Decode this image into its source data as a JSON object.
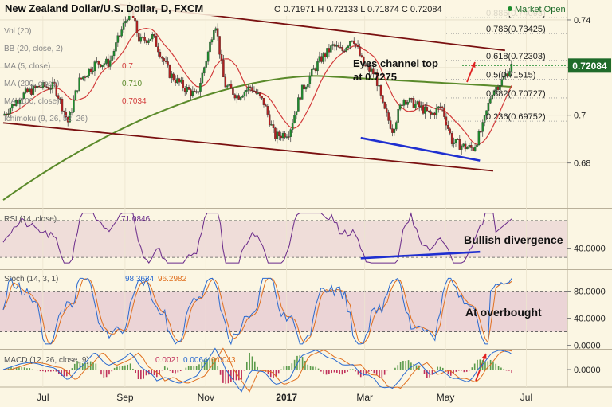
{
  "header": {
    "title": "New Zealand Dollar/U.S. Dollar, D, FXCM",
    "ohlc_text": "O 0.71971  H 0.72133  L 0.71874  C 0.72084",
    "market_status": "Market Open"
  },
  "colors": {
    "background": "#fbf6e3",
    "candle_up": "#1e8c2d",
    "candle_down": "#b02020",
    "ma5": "#d23b3b",
    "ma200": "#5a8a2a",
    "channel": "#7a1010",
    "support": "#1f2fd0",
    "arrow": "#e02020",
    "rsi_line": "#6a2a8a",
    "stoch_k": "#2a6ad0",
    "stoch_d": "#e07020",
    "band_fill": "#e6c8d2",
    "market_dot": "#1e8c2d"
  },
  "chart_data": {
    "type": "candlestick",
    "x_ticks": [
      "Jul",
      "Sep",
      "Nov",
      "2017",
      "Mar",
      "May",
      "Jul"
    ],
    "current_price": 0.72084,
    "price_axis": {
      "ticks": [
        0.68,
        0.7,
        0.72,
        0.74
      ],
      "ylim": [
        0.6615,
        0.747
      ]
    },
    "legends": [
      {
        "label": "Vol (20)",
        "value": ""
      },
      {
        "label": "BB (20, close, 2)",
        "value": ""
      },
      {
        "label": "MA (5, close)",
        "value": "0.7",
        "color": "#d23b3b"
      },
      {
        "label": "MA (200, close)",
        "value": "0.710",
        "color": "#5a8a2a"
      },
      {
        "label": "MA (100, close)",
        "value": "0.7034",
        "color": "#d23b3b"
      },
      {
        "label": "Ichimoku (9, 26, 52, 26)",
        "value": ""
      }
    ],
    "fib_levels": [
      {
        "label": "0.886(0.74093)",
        "price": 0.74093
      },
      {
        "label": "0.786(0.73425)",
        "price": 0.73425
      },
      {
        "label": "0.618(0.72303)",
        "price": 0.72303
      },
      {
        "label": "0.5(0.71515)",
        "price": 0.71515
      },
      {
        "label": "0.382(0.70727)",
        "price": 0.70727
      },
      {
        "label": "0.236(0.69752)",
        "price": 0.69752
      }
    ],
    "annotations": {
      "channel": [
        "Eyes channel top",
        "at 0.7275"
      ],
      "rsi": "Bullish divergence",
      "stoch": "At overbought"
    },
    "channel": {
      "upper": [
        {
          "date": "2016-08-28",
          "price": 0.7465
        },
        {
          "date": "2017-06-15",
          "price": 0.7272
        }
      ],
      "lower": [
        {
          "date": "2016-06-01",
          "price": 0.6968
        },
        {
          "date": "2017-06-06",
          "price": 0.6767
        }
      ]
    },
    "support_line": [
      {
        "date": "2017-02-26",
        "price": 0.6905
      },
      {
        "date": "2017-05-27",
        "price": 0.681
      }
    ],
    "rsi": {
      "label": "RSI (14, close)",
      "value": "71.0846",
      "ticks": [
        40
      ],
      "tick_labels": [
        "40.0000"
      ],
      "band": [
        30,
        70
      ],
      "divergence_line": [
        {
          "date": "2017-02-26",
          "rsi": 29
        },
        {
          "date": "2017-05-27",
          "rsi": 36
        }
      ]
    },
    "stoch": {
      "label": "Stoch (14, 3, 1)",
      "k_value": "98.3634",
      "d_value": "96.2982",
      "ticks": [
        0,
        40,
        80
      ],
      "tick_labels": [
        "0.0000",
        "40.0000",
        "80.0000"
      ],
      "band": [
        20,
        80
      ]
    },
    "macd": {
      "label": "MACD (12, 26, close, 9)",
      "values": [
        "0.0021",
        "0.0064",
        "0.0043"
      ],
      "ticks": [
        0
      ],
      "tick_labels": [
        "0.0000"
      ]
    },
    "price_series": [
      {
        "date": "2016-06-01",
        "price": 0.7
      },
      {
        "date": "2016-06-14",
        "price": 0.708
      },
      {
        "date": "2016-06-28",
        "price": 0.712
      },
      {
        "date": "2016-07-10",
        "price": 0.712
      },
      {
        "date": "2016-07-20",
        "price": 0.697
      },
      {
        "date": "2016-07-28",
        "price": 0.714
      },
      {
        "date": "2016-08-10",
        "price": 0.722
      },
      {
        "date": "2016-08-20",
        "price": 0.722
      },
      {
        "date": "2016-09-05",
        "price": 0.745
      },
      {
        "date": "2016-09-12",
        "price": 0.731
      },
      {
        "date": "2016-09-22",
        "price": 0.733
      },
      {
        "date": "2016-10-05",
        "price": 0.717
      },
      {
        "date": "2016-10-15",
        "price": 0.712
      },
      {
        "date": "2016-10-25",
        "price": 0.708
      },
      {
        "date": "2016-11-03",
        "price": 0.727
      },
      {
        "date": "2016-11-08",
        "price": 0.74
      },
      {
        "date": "2016-11-15",
        "price": 0.713
      },
      {
        "date": "2016-11-25",
        "price": 0.708
      },
      {
        "date": "2016-12-05",
        "price": 0.712
      },
      {
        "date": "2016-12-15",
        "price": 0.705
      },
      {
        "date": "2016-12-23",
        "price": 0.691
      },
      {
        "date": "2017-01-03",
        "price": 0.693
      },
      {
        "date": "2017-01-12",
        "price": 0.71
      },
      {
        "date": "2017-01-26",
        "price": 0.723
      },
      {
        "date": "2017-02-05",
        "price": 0.729
      },
      {
        "date": "2017-02-12",
        "price": 0.727
      },
      {
        "date": "2017-02-20",
        "price": 0.733
      },
      {
        "date": "2017-02-28",
        "price": 0.721
      },
      {
        "date": "2017-03-09",
        "price": 0.717
      },
      {
        "date": "2017-03-15",
        "price": 0.703
      },
      {
        "date": "2017-03-22",
        "price": 0.694
      },
      {
        "date": "2017-03-30",
        "price": 0.707
      },
      {
        "date": "2017-04-10",
        "price": 0.704
      },
      {
        "date": "2017-04-20",
        "price": 0.7
      },
      {
        "date": "2017-04-28",
        "price": 0.704
      },
      {
        "date": "2017-05-06",
        "price": 0.689
      },
      {
        "date": "2017-05-14",
        "price": 0.687
      },
      {
        "date": "2017-05-22",
        "price": 0.686
      },
      {
        "date": "2017-05-29",
        "price": 0.695
      },
      {
        "date": "2017-06-05",
        "price": 0.71
      },
      {
        "date": "2017-06-12",
        "price": 0.714
      },
      {
        "date": "2017-06-20",
        "price": 0.7208
      }
    ]
  }
}
